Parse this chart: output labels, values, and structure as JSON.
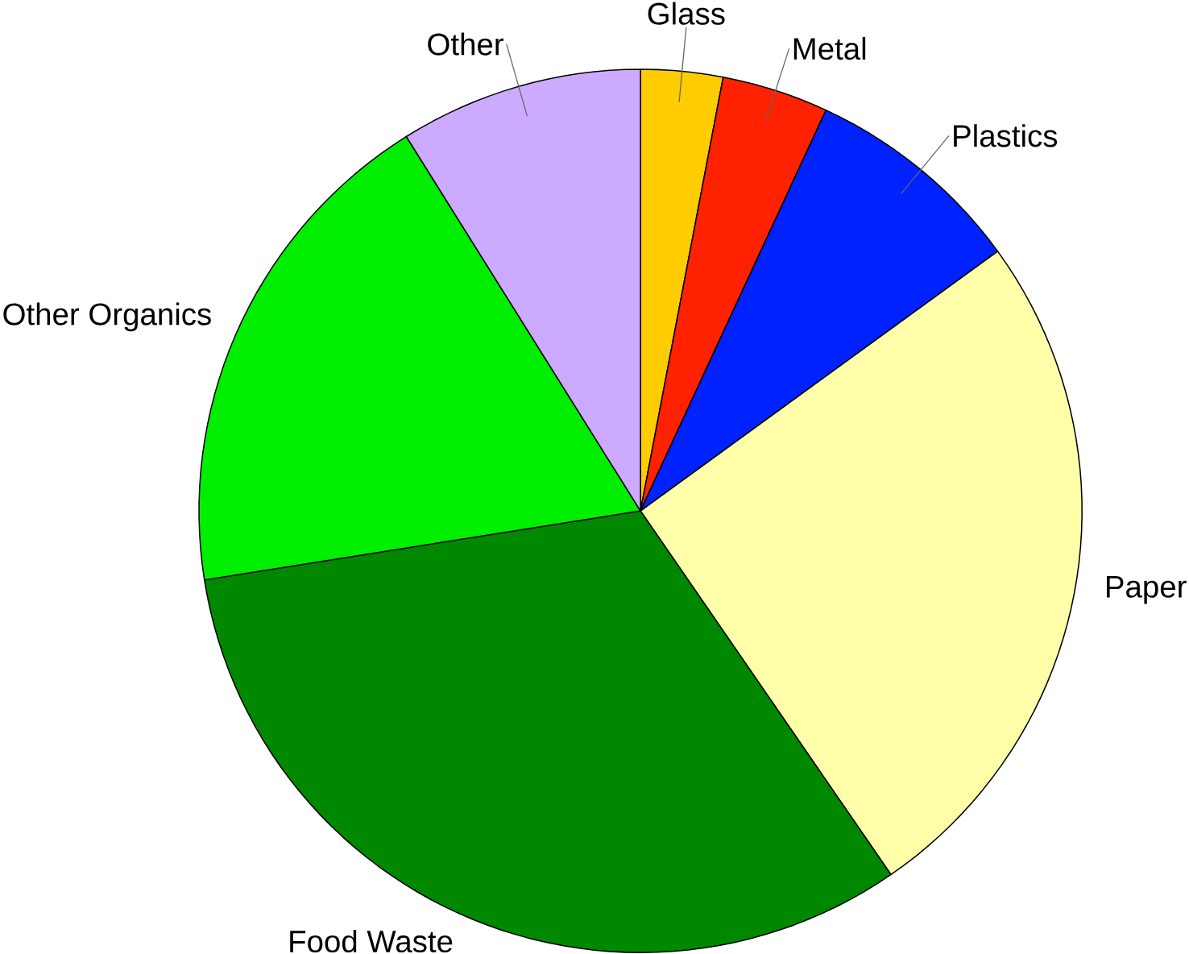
{
  "chart_data": {
    "type": "pie",
    "categories": [
      "Glass",
      "Metal",
      "Plastics",
      "Paper",
      "Food Waste",
      "Other Organics",
      "Other"
    ],
    "values": [
      3.0,
      3.9,
      8.1,
      25.4,
      32.1,
      18.6,
      8.9
    ],
    "colors": [
      "#ffcc00",
      "#ff2200",
      "#0022ff",
      "#ffffaa",
      "#008800",
      "#00ee00",
      "#ccaaff"
    ]
  }
}
